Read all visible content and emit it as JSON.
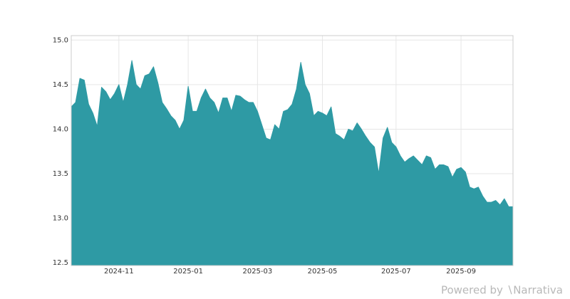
{
  "chart_data": {
    "type": "area",
    "x": [
      "2024-09",
      "2024-09",
      "2024-09",
      "2024-09",
      "2024-10",
      "2024-10",
      "2024-10",
      "2024-10",
      "2024-10",
      "2024-10",
      "2024-10",
      "2024-11",
      "2024-11",
      "2024-11",
      "2024-11",
      "2024-11",
      "2024-11",
      "2024-11",
      "2024-11",
      "2024-11",
      "2024-12",
      "2024-12",
      "2024-12",
      "2024-12",
      "2024-12",
      "2024-12",
      "2024-12",
      "2025-01",
      "2025-01",
      "2025-01",
      "2025-01",
      "2025-01",
      "2025-01",
      "2025-01",
      "2025-01",
      "2025-01",
      "2025-02",
      "2025-02",
      "2025-02",
      "2025-02",
      "2025-02",
      "2025-02",
      "2025-02",
      "2025-03",
      "2025-03",
      "2025-03",
      "2025-03",
      "2025-03",
      "2025-03",
      "2025-03",
      "2025-03",
      "2025-04",
      "2025-04",
      "2025-04",
      "2025-04",
      "2025-04",
      "2025-04",
      "2025-04",
      "2025-05",
      "2025-05",
      "2025-05",
      "2025-05",
      "2025-05",
      "2025-05",
      "2025-05",
      "2025-05",
      "2025-06",
      "2025-06",
      "2025-06",
      "2025-06",
      "2025-06",
      "2025-06",
      "2025-06",
      "2025-06",
      "2025-06",
      "2025-07",
      "2025-07",
      "2025-07",
      "2025-07",
      "2025-07",
      "2025-07",
      "2025-07",
      "2025-08",
      "2025-08",
      "2025-08",
      "2025-08",
      "2025-08",
      "2025-08",
      "2025-08",
      "2025-08",
      "2025-09",
      "2025-09",
      "2025-09",
      "2025-09",
      "2025-09",
      "2025-09",
      "2025-09",
      "2025-10",
      "2025-10",
      "2025-10",
      "2025-10",
      "2025-10",
      "2025-10"
    ],
    "values": [
      14.25,
      14.3,
      14.57,
      14.55,
      14.28,
      14.18,
      14.03,
      14.47,
      14.42,
      14.33,
      14.4,
      14.5,
      14.3,
      14.5,
      14.77,
      14.5,
      14.45,
      14.6,
      14.62,
      14.7,
      14.52,
      14.3,
      14.23,
      14.15,
      14.1,
      14.0,
      14.1,
      14.48,
      14.2,
      14.2,
      14.35,
      14.45,
      14.35,
      14.3,
      14.18,
      14.35,
      14.35,
      14.2,
      14.38,
      14.37,
      14.33,
      14.3,
      14.3,
      14.2,
      14.05,
      13.9,
      13.88,
      14.05,
      14.0,
      14.2,
      14.22,
      14.28,
      14.45,
      14.75,
      14.5,
      14.4,
      14.15,
      14.2,
      14.18,
      14.15,
      14.25,
      13.95,
      13.92,
      13.88,
      14.0,
      13.98,
      14.07,
      14.0,
      13.92,
      13.85,
      13.8,
      13.5,
      13.9,
      14.02,
      13.85,
      13.8,
      13.7,
      13.63,
      13.67,
      13.7,
      13.65,
      13.6,
      13.7,
      13.68,
      13.55,
      13.6,
      13.6,
      13.58,
      13.46,
      13.55,
      13.57,
      13.52,
      13.35,
      13.33,
      13.35,
      13.25,
      13.18,
      13.18,
      13.2,
      13.15,
      13.22,
      13.13,
      13.13
    ],
    "color": "#2e9aa4",
    "ylim": [
      12.47,
      15.05
    ],
    "yticks": [
      12.5,
      {
        "value": 13,
        "label": "13.0"
      },
      13.5,
      {
        "value": 14,
        "label": "14.0"
      },
      14.5,
      {
        "value": 15,
        "label": "15.0"
      }
    ],
    "xticks": [
      "2024-11",
      "2025-01",
      "2025-03",
      "2025-05",
      "2025-07",
      "2025-09"
    ],
    "grid": true,
    "watermark": "Powered by ∖Narrativa"
  }
}
